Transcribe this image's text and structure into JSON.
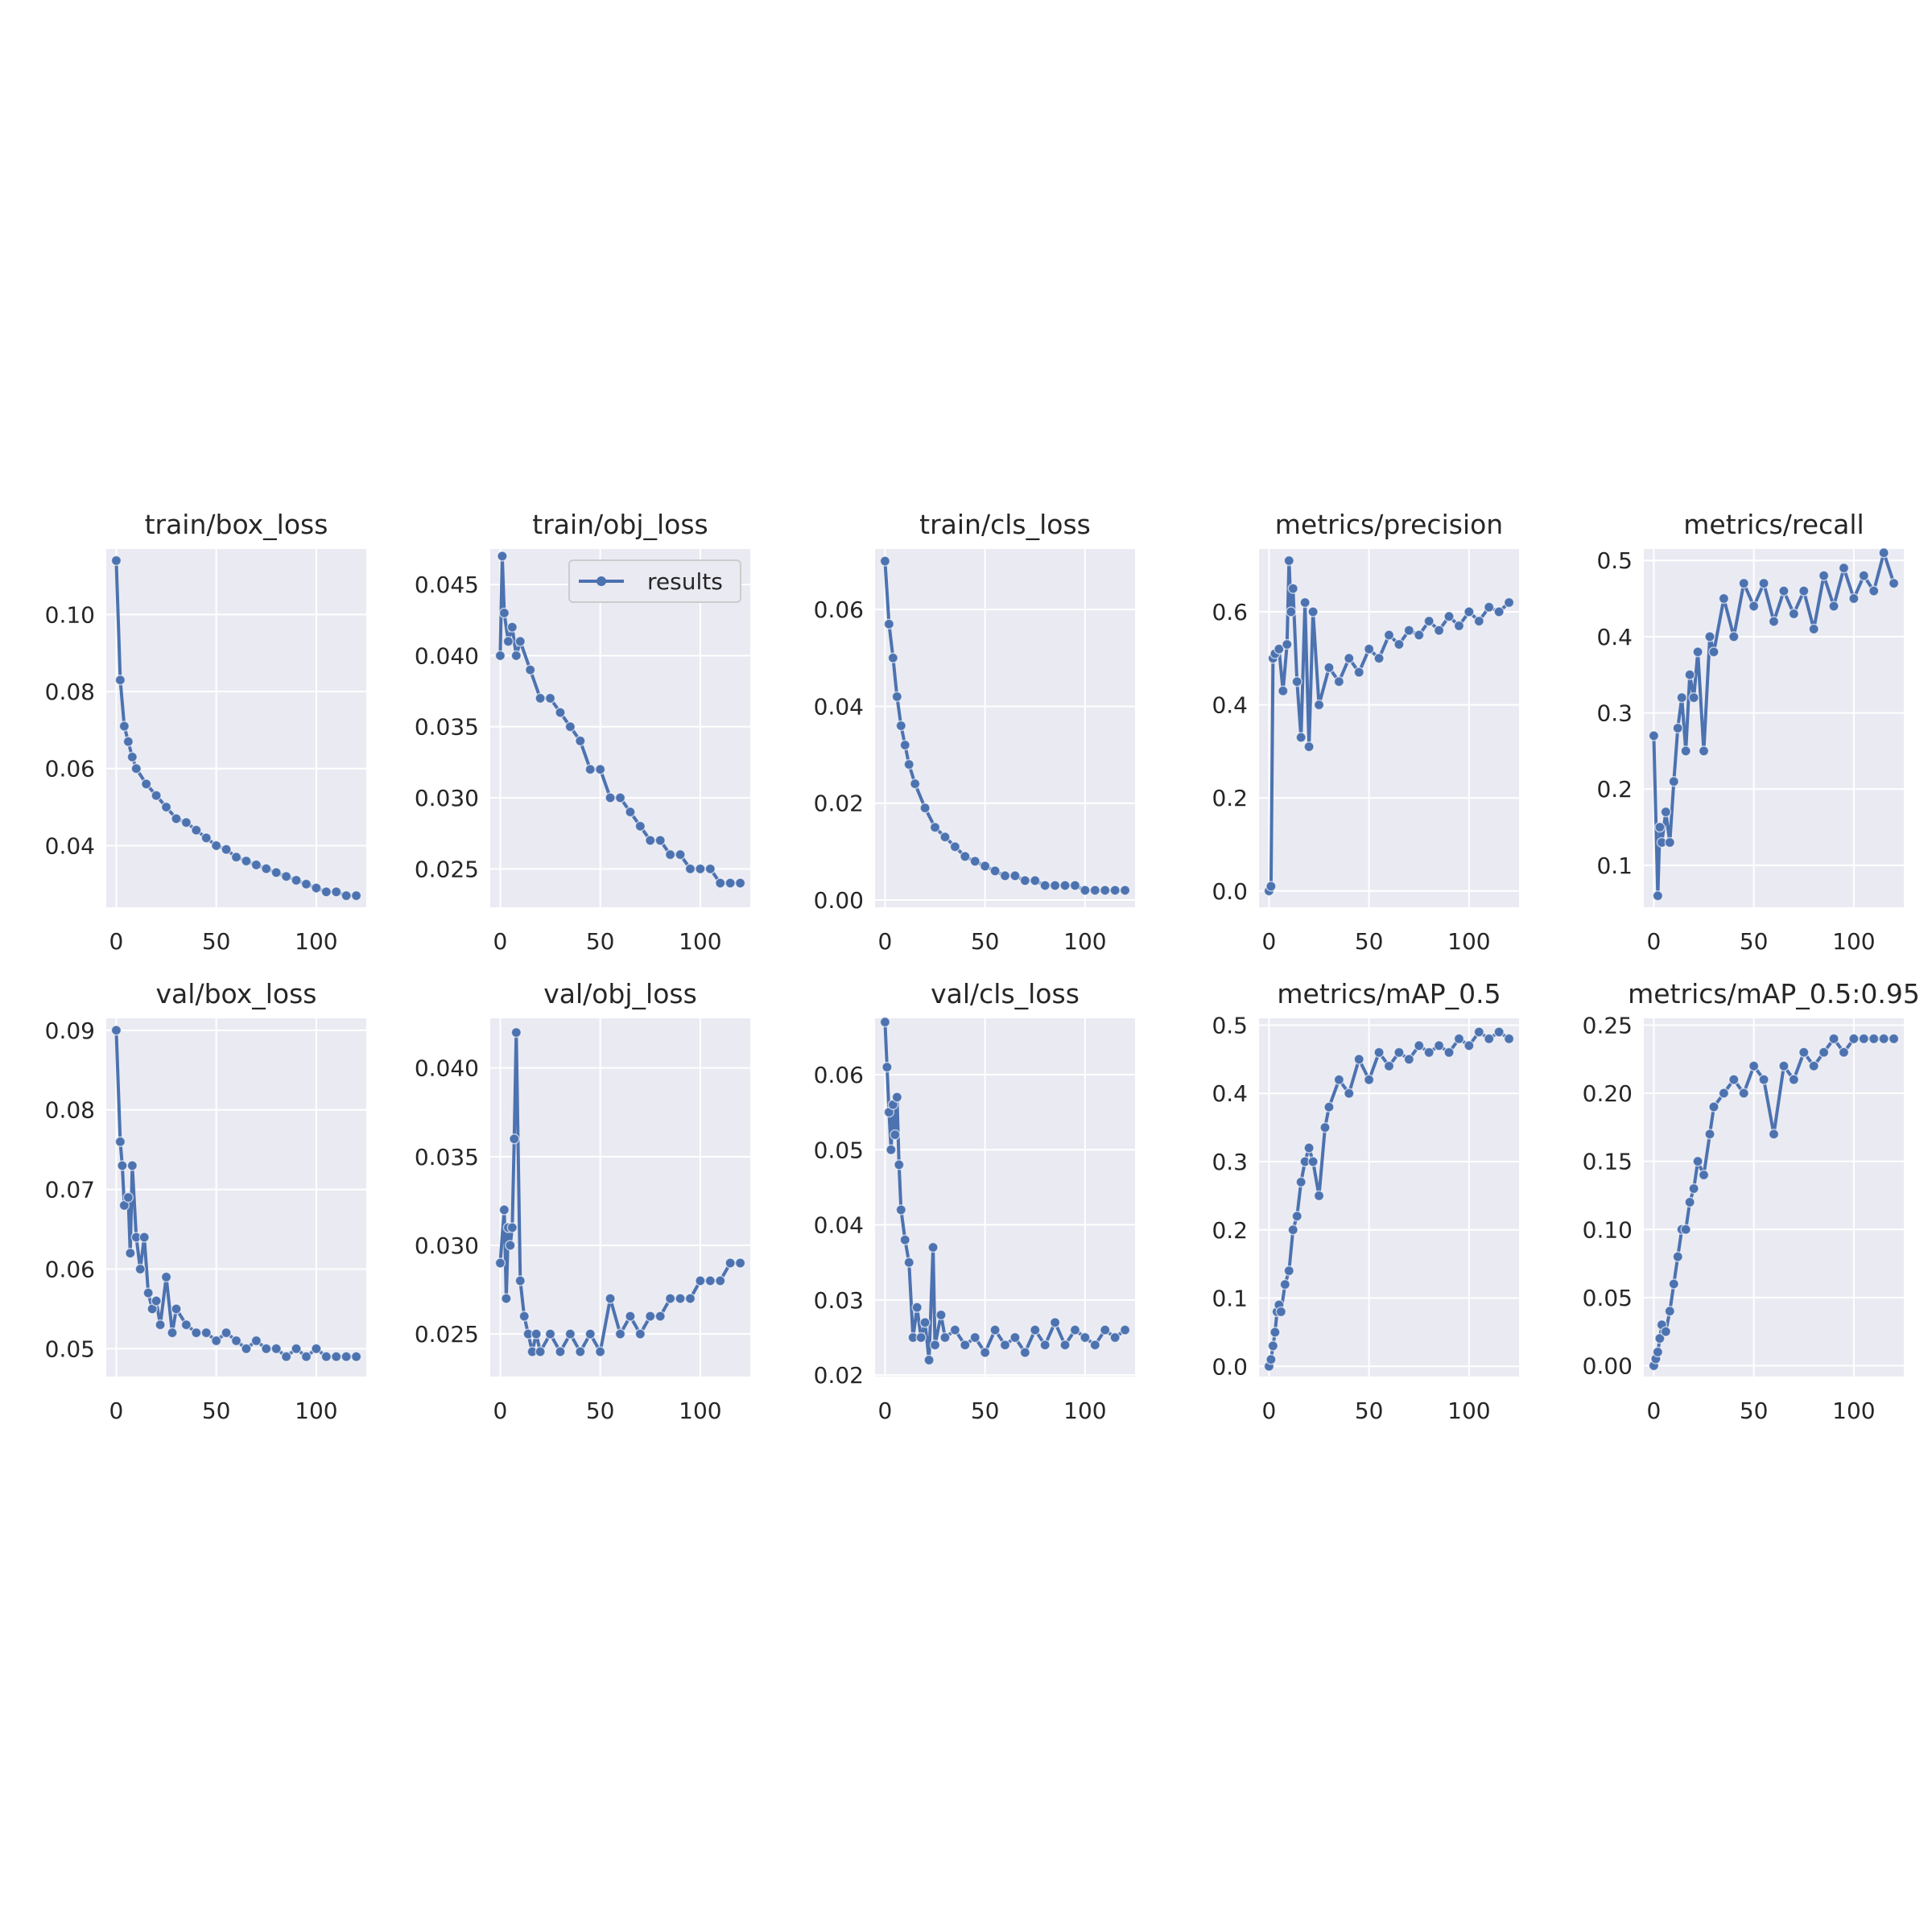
{
  "legend": {
    "label": "results"
  },
  "colors": {
    "line": "#4c72b0",
    "plot_bg": "#eaeaf2",
    "grid": "#ffffff",
    "text": "#262626"
  },
  "chart_data": [
    {
      "type": "line",
      "title": "train/box_loss",
      "xlabel": "",
      "ylabel": "",
      "xlim": [
        -5,
        125
      ],
      "ylim": [
        0.024,
        0.117
      ],
      "xticks": [
        "0",
        "50",
        "100"
      ],
      "yticks": [
        "0.04",
        "0.06",
        "0.08",
        "0.10"
      ],
      "series": [
        {
          "name": "results",
          "x": [
            0,
            2,
            4,
            6,
            8,
            10,
            15,
            20,
            25,
            30,
            35,
            40,
            45,
            50,
            55,
            60,
            65,
            70,
            75,
            80,
            85,
            90,
            95,
            100,
            105,
            110,
            115,
            120
          ],
          "y": [
            0.114,
            0.083,
            0.071,
            0.067,
            0.063,
            0.06,
            0.056,
            0.053,
            0.05,
            0.047,
            0.046,
            0.044,
            0.042,
            0.04,
            0.039,
            0.037,
            0.036,
            0.035,
            0.034,
            0.033,
            0.032,
            0.031,
            0.03,
            0.029,
            0.028,
            0.028,
            0.027,
            0.027
          ]
        }
      ]
    },
    {
      "type": "line",
      "title": "train/obj_loss",
      "xlabel": "",
      "ylabel": "",
      "xlim": [
        -5,
        125
      ],
      "ylim": [
        0.0223,
        0.0475
      ],
      "xticks": [
        "0",
        "50",
        "100"
      ],
      "yticks": [
        "0.025",
        "0.030",
        "0.035",
        "0.040",
        "0.045"
      ],
      "legend": "top-right",
      "series": [
        {
          "name": "results",
          "x": [
            0,
            1,
            2,
            4,
            6,
            8,
            10,
            15,
            20,
            25,
            30,
            35,
            40,
            45,
            50,
            55,
            60,
            65,
            70,
            75,
            80,
            85,
            90,
            95,
            100,
            105,
            110,
            115,
            120
          ],
          "y": [
            0.04,
            0.047,
            0.043,
            0.041,
            0.042,
            0.04,
            0.041,
            0.039,
            0.037,
            0.037,
            0.036,
            0.035,
            0.034,
            0.032,
            0.032,
            0.03,
            0.03,
            0.029,
            0.028,
            0.027,
            0.027,
            0.026,
            0.026,
            0.025,
            0.025,
            0.025,
            0.024,
            0.024,
            0.024
          ]
        }
      ]
    },
    {
      "type": "line",
      "title": "train/cls_loss",
      "xlabel": "",
      "ylabel": "",
      "xlim": [
        -5,
        125
      ],
      "ylim": [
        -0.0015,
        0.0725
      ],
      "xticks": [
        "0",
        "50",
        "100"
      ],
      "yticks": [
        "0.00",
        "0.02",
        "0.04",
        "0.06"
      ],
      "series": [
        {
          "name": "results",
          "x": [
            0,
            2,
            4,
            6,
            8,
            10,
            12,
            15,
            20,
            25,
            30,
            35,
            40,
            45,
            50,
            55,
            60,
            65,
            70,
            75,
            80,
            85,
            90,
            95,
            100,
            105,
            110,
            115,
            120
          ],
          "y": [
            0.07,
            0.057,
            0.05,
            0.042,
            0.036,
            0.032,
            0.028,
            0.024,
            0.019,
            0.015,
            0.013,
            0.011,
            0.009,
            0.008,
            0.007,
            0.006,
            0.005,
            0.005,
            0.004,
            0.004,
            0.003,
            0.003,
            0.003,
            0.003,
            0.002,
            0.002,
            0.002,
            0.002,
            0.002
          ]
        }
      ]
    },
    {
      "type": "line",
      "title": "metrics/precision",
      "xlabel": "",
      "ylabel": "",
      "xlim": [
        -5,
        125
      ],
      "ylim": [
        -0.035,
        0.735
      ],
      "xticks": [
        "0",
        "50",
        "100"
      ],
      "yticks": [
        "0.0",
        "0.2",
        "0.4",
        "0.6"
      ],
      "series": [
        {
          "name": "results",
          "x": [
            0,
            1,
            2,
            3,
            5,
            7,
            9,
            10,
            11,
            12,
            14,
            16,
            18,
            20,
            22,
            25,
            30,
            35,
            40,
            45,
            50,
            55,
            60,
            65,
            70,
            75,
            80,
            85,
            90,
            95,
            100,
            105,
            110,
            115,
            120
          ],
          "y": [
            0.0,
            0.01,
            0.5,
            0.51,
            0.52,
            0.43,
            0.53,
            0.71,
            0.6,
            0.65,
            0.45,
            0.33,
            0.62,
            0.31,
            0.6,
            0.4,
            0.48,
            0.45,
            0.5,
            0.47,
            0.52,
            0.5,
            0.55,
            0.53,
            0.56,
            0.55,
            0.58,
            0.56,
            0.59,
            0.57,
            0.6,
            0.58,
            0.61,
            0.6,
            0.62
          ]
        }
      ]
    },
    {
      "type": "line",
      "title": "metrics/recall",
      "xlabel": "",
      "ylabel": "",
      "xlim": [
        -5,
        125
      ],
      "ylim": [
        0.045,
        0.515
      ],
      "xticks": [
        "0",
        "50",
        "100"
      ],
      "yticks": [
        "0.1",
        "0.2",
        "0.3",
        "0.4",
        "0.5"
      ],
      "series": [
        {
          "name": "results",
          "x": [
            0,
            2,
            3,
            4,
            6,
            8,
            10,
            12,
            14,
            16,
            18,
            20,
            22,
            25,
            28,
            30,
            35,
            40,
            45,
            50,
            55,
            60,
            65,
            70,
            75,
            80,
            85,
            90,
            95,
            100,
            105,
            110,
            115,
            120
          ],
          "y": [
            0.27,
            0.06,
            0.15,
            0.13,
            0.17,
            0.13,
            0.21,
            0.28,
            0.32,
            0.25,
            0.35,
            0.32,
            0.38,
            0.25,
            0.4,
            0.38,
            0.45,
            0.4,
            0.47,
            0.44,
            0.47,
            0.42,
            0.46,
            0.43,
            0.46,
            0.41,
            0.48,
            0.44,
            0.49,
            0.45,
            0.48,
            0.46,
            0.51,
            0.47
          ]
        }
      ]
    },
    {
      "type": "line",
      "title": "val/box_loss",
      "xlabel": "",
      "ylabel": "",
      "xlim": [
        -5,
        125
      ],
      "ylim": [
        0.0465,
        0.0915
      ],
      "xticks": [
        "0",
        "50",
        "100"
      ],
      "yticks": [
        "0.05",
        "0.06",
        "0.07",
        "0.08",
        "0.09"
      ],
      "series": [
        {
          "name": "results",
          "x": [
            0,
            2,
            3,
            4,
            6,
            7,
            8,
            10,
            12,
            14,
            16,
            18,
            20,
            22,
            25,
            28,
            30,
            35,
            40,
            45,
            50,
            55,
            60,
            65,
            70,
            75,
            80,
            85,
            90,
            95,
            100,
            105,
            110,
            115,
            120
          ],
          "y": [
            0.09,
            0.076,
            0.073,
            0.068,
            0.069,
            0.062,
            0.073,
            0.064,
            0.06,
            0.064,
            0.057,
            0.055,
            0.056,
            0.053,
            0.059,
            0.052,
            0.055,
            0.053,
            0.052,
            0.052,
            0.051,
            0.052,
            0.051,
            0.05,
            0.051,
            0.05,
            0.05,
            0.049,
            0.05,
            0.049,
            0.05,
            0.049,
            0.049,
            0.049,
            0.049
          ]
        }
      ]
    },
    {
      "type": "line",
      "title": "val/obj_loss",
      "xlabel": "",
      "ylabel": "",
      "xlim": [
        -5,
        125
      ],
      "ylim": [
        0.0226,
        0.0428
      ],
      "xticks": [
        "0",
        "50",
        "100"
      ],
      "yticks": [
        "0.025",
        "0.030",
        "0.035",
        "0.040"
      ],
      "series": [
        {
          "name": "results",
          "x": [
            0,
            2,
            3,
            4,
            5,
            6,
            7,
            8,
            10,
            12,
            14,
            16,
            18,
            20,
            25,
            30,
            35,
            40,
            45,
            50,
            55,
            60,
            65,
            70,
            75,
            80,
            85,
            90,
            95,
            100,
            105,
            110,
            115,
            120
          ],
          "y": [
            0.029,
            0.032,
            0.027,
            0.031,
            0.03,
            0.031,
            0.036,
            0.042,
            0.028,
            0.026,
            0.025,
            0.024,
            0.025,
            0.024,
            0.025,
            0.024,
            0.025,
            0.024,
            0.025,
            0.024,
            0.027,
            0.025,
            0.026,
            0.025,
            0.026,
            0.026,
            0.027,
            0.027,
            0.027,
            0.028,
            0.028,
            0.028,
            0.029,
            0.029
          ]
        }
      ]
    },
    {
      "type": "line",
      "title": "val/cls_loss",
      "xlabel": "",
      "ylabel": "",
      "xlim": [
        -5,
        125
      ],
      "ylim": [
        0.0198,
        0.0675
      ],
      "xticks": [
        "0",
        "50",
        "100"
      ],
      "yticks": [
        "0.02",
        "0.03",
        "0.04",
        "0.05",
        "0.06"
      ],
      "series": [
        {
          "name": "results",
          "x": [
            0,
            1,
            2,
            3,
            4,
            5,
            6,
            7,
            8,
            10,
            12,
            14,
            16,
            18,
            20,
            22,
            24,
            25,
            28,
            30,
            35,
            40,
            45,
            50,
            55,
            60,
            65,
            70,
            75,
            80,
            85,
            90,
            95,
            100,
            105,
            110,
            115,
            120
          ],
          "y": [
            0.067,
            0.061,
            0.055,
            0.05,
            0.056,
            0.052,
            0.057,
            0.048,
            0.042,
            0.038,
            0.035,
            0.025,
            0.029,
            0.025,
            0.027,
            0.022,
            0.037,
            0.024,
            0.028,
            0.025,
            0.026,
            0.024,
            0.025,
            0.023,
            0.026,
            0.024,
            0.025,
            0.023,
            0.026,
            0.024,
            0.027,
            0.024,
            0.026,
            0.025,
            0.024,
            0.026,
            0.025,
            0.026
          ]
        }
      ]
    },
    {
      "type": "line",
      "title": "metrics/mAP_0.5",
      "xlabel": "",
      "ylabel": "",
      "xlim": [
        -5,
        125
      ],
      "ylim": [
        -0.015,
        0.51
      ],
      "xticks": [
        "0",
        "50",
        "100"
      ],
      "yticks": [
        "0.0",
        "0.1",
        "0.2",
        "0.3",
        "0.4",
        "0.5"
      ],
      "series": [
        {
          "name": "results",
          "x": [
            0,
            1,
            2,
            3,
            4,
            5,
            6,
            8,
            10,
            12,
            14,
            16,
            18,
            20,
            22,
            25,
            28,
            30,
            35,
            40,
            45,
            50,
            55,
            60,
            65,
            70,
            75,
            80,
            85,
            90,
            95,
            100,
            105,
            110,
            115,
            120
          ],
          "y": [
            0.0,
            0.01,
            0.03,
            0.05,
            0.08,
            0.09,
            0.08,
            0.12,
            0.14,
            0.2,
            0.22,
            0.27,
            0.3,
            0.32,
            0.3,
            0.25,
            0.35,
            0.38,
            0.42,
            0.4,
            0.45,
            0.42,
            0.46,
            0.44,
            0.46,
            0.45,
            0.47,
            0.46,
            0.47,
            0.46,
            0.48,
            0.47,
            0.49,
            0.48,
            0.49,
            0.48
          ]
        }
      ]
    },
    {
      "type": "line",
      "title": "metrics/mAP_0.5:0.95",
      "xlabel": "",
      "ylabel": "",
      "xlim": [
        -5,
        125
      ],
      "ylim": [
        -0.008,
        0.255
      ],
      "xticks": [
        "0",
        "50",
        "100"
      ],
      "yticks": [
        "0.00",
        "0.05",
        "0.10",
        "0.15",
        "0.20",
        "0.25"
      ],
      "series": [
        {
          "name": "results",
          "x": [
            0,
            1,
            2,
            3,
            4,
            6,
            8,
            10,
            12,
            14,
            16,
            18,
            20,
            22,
            25,
            28,
            30,
            35,
            40,
            45,
            50,
            55,
            60,
            65,
            70,
            75,
            80,
            85,
            90,
            95,
            100,
            105,
            110,
            115,
            120
          ],
          "y": [
            0.0,
            0.005,
            0.01,
            0.02,
            0.03,
            0.025,
            0.04,
            0.06,
            0.08,
            0.1,
            0.1,
            0.12,
            0.13,
            0.15,
            0.14,
            0.17,
            0.19,
            0.2,
            0.21,
            0.2,
            0.22,
            0.21,
            0.17,
            0.22,
            0.21,
            0.23,
            0.22,
            0.23,
            0.24,
            0.23,
            0.24,
            0.24,
            0.24,
            0.24,
            0.24
          ]
        }
      ]
    }
  ]
}
